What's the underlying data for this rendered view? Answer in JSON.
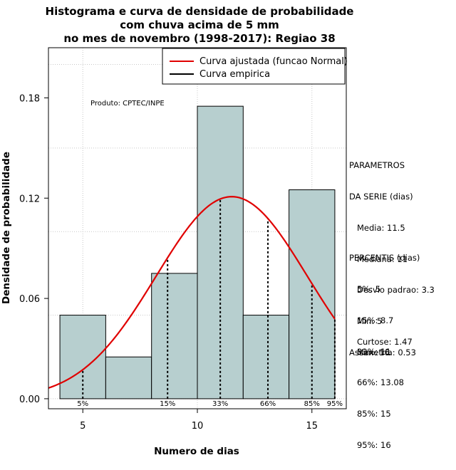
{
  "chart_data": {
    "type": "bar",
    "title": [
      "Histograma e curva de densidade de probabilidade",
      "com chuva acima de 5 mm",
      "no mes de novembro (1998-2017): Regiao 38"
    ],
    "xlabel": "Numero de dias",
    "ylabel": "Densidade de probabilidade",
    "xlim": [
      3.5,
      16.5
    ],
    "ylim": [
      -0.006,
      0.21
    ],
    "x_ticks": [
      5,
      10,
      15
    ],
    "y_ticks": [
      0.0,
      0.06,
      0.12,
      0.18
    ],
    "y_tick_labels": [
      "0.00",
      "0.06",
      "0.12",
      "0.18"
    ],
    "bins": [
      {
        "from": 4,
        "to": 6,
        "density": 0.05
      },
      {
        "from": 6,
        "to": 8,
        "density": 0.025
      },
      {
        "from": 8,
        "to": 10,
        "density": 0.075
      },
      {
        "from": 10,
        "to": 12,
        "density": 0.175
      },
      {
        "from": 12,
        "to": 14,
        "density": 0.05
      },
      {
        "from": 14,
        "to": 16,
        "density": 0.125
      }
    ],
    "normal_curve": {
      "mean": 11.5,
      "sd": 3.3,
      "from": 3.5,
      "to": 16,
      "color": "#e00000"
    },
    "percentile_lines": [
      {
        "label": "5%",
        "x": 5
      },
      {
        "label": "15%",
        "x": 8.7
      },
      {
        "label": "33%",
        "x": 11
      },
      {
        "label": "66%",
        "x": 13.08
      },
      {
        "label": "85%",
        "x": 15
      },
      {
        "label": "95%",
        "x": 16
      }
    ],
    "legend": [
      "Curva ajustada (funcao Normal)",
      "Curva empirica"
    ],
    "legend_colors": [
      "#e00000",
      "#000000"
    ],
    "legend_position": "top-right",
    "annotation": "Produto: CPTEC/INPE",
    "grid": true,
    "bar_color": "#b7cfcf"
  },
  "side_panel": {
    "parametros": [
      "PARAMETROS",
      "DA SERIE (dias)",
      "   Media: 11.5",
      "   Mediana: 11",
      "   Desvio padrao: 3.3",
      "   Min: 5",
      "   Max: 16"
    ],
    "percentis": [
      "PERCENTIS (dias)",
      "   5%: 5",
      "   15%: 8.7",
      "   33%: 11",
      "   66%: 13.08",
      "   85%: 15",
      "   95%: 16"
    ],
    "curtose": "   Curtose: 1.47",
    "assimetria": "Assimetria: 0.53"
  }
}
